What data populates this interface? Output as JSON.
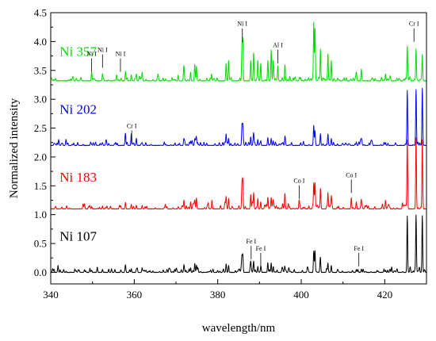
{
  "chart_data": {
    "type": "line",
    "title": "",
    "xlabel": "wavelength/nm",
    "ylabel": "Normalized intensity",
    "xlim": [
      340,
      430
    ],
    "ylim": [
      -0.2,
      4.5
    ],
    "xticks": [
      340,
      360,
      380,
      400,
      420
    ],
    "yticks": [
      0.0,
      0.5,
      1.0,
      1.5,
      2.0,
      2.5,
      3.0,
      3.5,
      4.0,
      4.5
    ],
    "grid": false,
    "legend": "none",
    "series": [
      {
        "name": "Ni 107",
        "color": "#000000",
        "baseline": 0.0,
        "peaks": [
          [
            349.8,
            0.04
          ],
          [
            352.4,
            0.05
          ],
          [
            357.9,
            0.08
          ],
          [
            359.3,
            0.06
          ],
          [
            360.5,
            0.05
          ],
          [
            361.9,
            0.06
          ],
          [
            371.9,
            0.12
          ],
          [
            373.5,
            0.08
          ],
          [
            374.5,
            0.1
          ],
          [
            374.9,
            0.12
          ],
          [
            382.0,
            0.1
          ],
          [
            382.6,
            0.12
          ],
          [
            385.8,
            0.25
          ],
          [
            386.0,
            0.3
          ],
          [
            387.9,
            0.15
          ],
          [
            388.6,
            0.18
          ],
          [
            389.6,
            0.1
          ],
          [
            390.3,
            0.08
          ],
          [
            392.0,
            0.12
          ],
          [
            392.8,
            0.16
          ],
          [
            393.3,
            0.1
          ],
          [
            396.1,
            0.08
          ],
          [
            403.0,
            0.37
          ],
          [
            403.3,
            0.32
          ],
          [
            404.6,
            0.22
          ],
          [
            406.4,
            0.14
          ],
          [
            407.2,
            0.12
          ],
          [
            413.2,
            0.05
          ],
          [
            414.4,
            0.06
          ],
          [
            420.2,
            0.04
          ],
          [
            425.4,
            0.98
          ],
          [
            427.5,
            0.98
          ],
          [
            429.0,
            0.98
          ]
        ]
      },
      {
        "name": "Ni 183",
        "color": "#ff0000",
        "baseline": 1.1,
        "peaks": [
          [
            349.8,
            0.04
          ],
          [
            352.4,
            0.05
          ],
          [
            357.9,
            0.08
          ],
          [
            359.3,
            0.08
          ],
          [
            360.5,
            0.06
          ],
          [
            361.9,
            0.06
          ],
          [
            371.9,
            0.15
          ],
          [
            373.5,
            0.12
          ],
          [
            374.5,
            0.15
          ],
          [
            374.9,
            0.18
          ],
          [
            382.0,
            0.2
          ],
          [
            382.6,
            0.18
          ],
          [
            385.8,
            0.45
          ],
          [
            386.0,
            0.5
          ],
          [
            387.9,
            0.25
          ],
          [
            388.6,
            0.28
          ],
          [
            389.6,
            0.18
          ],
          [
            390.3,
            0.12
          ],
          [
            392.0,
            0.2
          ],
          [
            392.8,
            0.2
          ],
          [
            393.3,
            0.15
          ],
          [
            396.1,
            0.25
          ],
          [
            399.5,
            0.15
          ],
          [
            403.0,
            0.45
          ],
          [
            403.3,
            0.38
          ],
          [
            404.6,
            0.32
          ],
          [
            406.4,
            0.28
          ],
          [
            407.2,
            0.22
          ],
          [
            412.0,
            0.18
          ],
          [
            413.2,
            0.12
          ],
          [
            414.4,
            0.15
          ],
          [
            420.2,
            0.1
          ],
          [
            425.4,
            1.2
          ],
          [
            427.5,
            1.2
          ],
          [
            429.0,
            1.2
          ]
        ]
      },
      {
        "name": "Ni 202",
        "color": "#0000ff",
        "baseline": 2.2,
        "peaks": [
          [
            349.8,
            0.02
          ],
          [
            352.4,
            0.03
          ],
          [
            357.9,
            0.18
          ],
          [
            359.3,
            0.2
          ],
          [
            360.5,
            0.12
          ],
          [
            361.9,
            0.05
          ],
          [
            371.9,
            0.1
          ],
          [
            373.5,
            0.08
          ],
          [
            374.5,
            0.1
          ],
          [
            374.9,
            0.1
          ],
          [
            382.0,
            0.15
          ],
          [
            382.6,
            0.12
          ],
          [
            385.8,
            0.28
          ],
          [
            386.0,
            0.3
          ],
          [
            387.9,
            0.15
          ],
          [
            388.6,
            0.2
          ],
          [
            389.6,
            0.1
          ],
          [
            390.3,
            0.08
          ],
          [
            392.0,
            0.1
          ],
          [
            392.8,
            0.12
          ],
          [
            393.3,
            0.08
          ],
          [
            396.1,
            0.08
          ],
          [
            403.0,
            0.3
          ],
          [
            403.3,
            0.25
          ],
          [
            404.6,
            0.2
          ],
          [
            406.4,
            0.15
          ],
          [
            407.2,
            0.12
          ],
          [
            413.2,
            0.06
          ],
          [
            414.4,
            0.08
          ],
          [
            420.2,
            0.05
          ],
          [
            425.4,
            0.95
          ],
          [
            427.5,
            0.95
          ],
          [
            429.0,
            0.95
          ]
        ]
      },
      {
        "name": "Ni 357",
        "color": "#00dd00",
        "baseline": 3.32,
        "peaks": [
          [
            349.8,
            0.15
          ],
          [
            352.4,
            0.12
          ],
          [
            357.9,
            0.12
          ],
          [
            359.3,
            0.1
          ],
          [
            360.5,
            0.1
          ],
          [
            361.9,
            0.15
          ],
          [
            371.9,
            0.18
          ],
          [
            373.5,
            0.15
          ],
          [
            374.5,
            0.22
          ],
          [
            374.9,
            0.25
          ],
          [
            382.0,
            0.3
          ],
          [
            382.6,
            0.35
          ],
          [
            385.8,
            0.6
          ],
          [
            386.0,
            0.7
          ],
          [
            387.9,
            0.35
          ],
          [
            388.6,
            0.45
          ],
          [
            389.6,
            0.35
          ],
          [
            390.3,
            0.3
          ],
          [
            392.0,
            0.35
          ],
          [
            392.8,
            0.45
          ],
          [
            393.3,
            0.3
          ],
          [
            394.4,
            0.25
          ],
          [
            396.1,
            0.28
          ],
          [
            403.0,
            0.98
          ],
          [
            403.3,
            0.9
          ],
          [
            404.6,
            0.55
          ],
          [
            406.4,
            0.45
          ],
          [
            407.2,
            0.35
          ],
          [
            413.2,
            0.15
          ],
          [
            414.4,
            0.2
          ],
          [
            420.2,
            0.12
          ],
          [
            425.4,
            0.6
          ],
          [
            427.5,
            0.55
          ],
          [
            429.0,
            0.45
          ]
        ]
      }
    ],
    "series_labels": [
      {
        "text": "Ni 107",
        "color": "#000000",
        "x": 341,
        "y": 0.55
      },
      {
        "text": "Ni 183",
        "color": "#ff0000",
        "x": 341,
        "y": 1.57
      },
      {
        "text": "Ni 202",
        "color": "#0000ff",
        "x": 341,
        "y": 2.75
      },
      {
        "text": "Ni 357",
        "color": "#00dd00",
        "x": 341,
        "y": 3.75
      }
    ],
    "annotations": [
      {
        "text": "Ni I",
        "x": 349.8,
        "y": 3.75
      },
      {
        "text": "Ni I",
        "x": 352.4,
        "y": 3.82
      },
      {
        "text": "Ni I",
        "x": 356.7,
        "y": 3.75
      },
      {
        "text": "Ni I",
        "x": 385.9,
        "y": 4.27
      },
      {
        "text": "Al I",
        "x": 394.4,
        "y": 3.9
      },
      {
        "text": "Cr I",
        "x": 427.0,
        "y": 4.27
      },
      {
        "text": "Cr I",
        "x": 359.4,
        "y": 2.5
      },
      {
        "text": "Co I",
        "x": 399.5,
        "y": 1.55
      },
      {
        "text": "Co I",
        "x": 412.0,
        "y": 1.65
      },
      {
        "text": "Fe I",
        "x": 388.0,
        "y": 0.5
      },
      {
        "text": "Fe I",
        "x": 390.3,
        "y": 0.38
      },
      {
        "text": "Fe I",
        "x": 413.8,
        "y": 0.38
      }
    ]
  }
}
